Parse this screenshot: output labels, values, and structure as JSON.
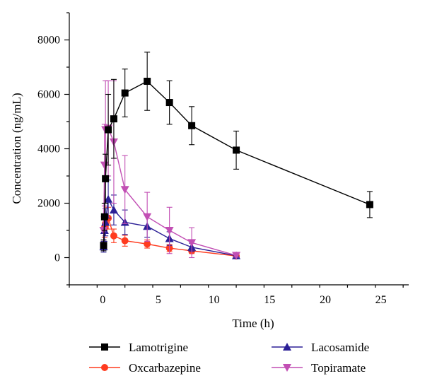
{
  "chart_data": {
    "type": "line",
    "xlabel": "Time (h)",
    "ylabel": "Concentration (ng/mL)",
    "xlim": [
      -3,
      27.5
    ],
    "ylim": [
      -1000,
      9000
    ],
    "xticks": [
      0,
      5,
      10,
      15,
      20,
      25
    ],
    "xtick_labels": [
      "0",
      "5",
      "10",
      "15",
      "20",
      "25"
    ],
    "yticks": [
      0,
      2000,
      4000,
      6000,
      8000
    ],
    "ytick_labels": [
      "0",
      "2000",
      "4000",
      "6000",
      "8000"
    ],
    "grid": false,
    "legend_position": "bottom",
    "series": [
      {
        "name": "Lamotrigine",
        "color": "#000000",
        "marker": "square",
        "points": [
          {
            "x": 0.083,
            "y": 450,
            "err": 200
          },
          {
            "x": 0.167,
            "y": 1500,
            "err": 500
          },
          {
            "x": 0.25,
            "y": 2900,
            "err": 900
          },
          {
            "x": 0.5,
            "y": 4700,
            "err": 1300
          },
          {
            "x": 1,
            "y": 5100,
            "err": 1450
          },
          {
            "x": 2,
            "y": 6050,
            "err": 880
          },
          {
            "x": 4,
            "y": 6480,
            "err": 1070
          },
          {
            "x": 6,
            "y": 5700,
            "err": 800
          },
          {
            "x": 8,
            "y": 4850,
            "err": 700
          },
          {
            "x": 12,
            "y": 3950,
            "err": 700
          },
          {
            "x": 24,
            "y": 1950,
            "err": 480
          }
        ]
      },
      {
        "name": "Oxcarbazepine",
        "color": "#ff3b1f",
        "marker": "circle",
        "points": [
          {
            "x": 0.083,
            "y": 450,
            "err": 150
          },
          {
            "x": 0.167,
            "y": 1100,
            "err": 350
          },
          {
            "x": 0.25,
            "y": 1250,
            "err": 350
          },
          {
            "x": 0.5,
            "y": 1450,
            "err": 400
          },
          {
            "x": 1,
            "y": 800,
            "err": 250
          },
          {
            "x": 2,
            "y": 620,
            "err": 200
          },
          {
            "x": 4,
            "y": 500,
            "err": 150
          },
          {
            "x": 6,
            "y": 350,
            "err": 130
          },
          {
            "x": 8,
            "y": 250,
            "err": 100
          },
          {
            "x": 12,
            "y": 60,
            "err": 40
          }
        ]
      },
      {
        "name": "Lacosamide",
        "color": "#2b1f96",
        "marker": "triangle-up",
        "points": [
          {
            "x": 0.083,
            "y": 400,
            "err": 200
          },
          {
            "x": 0.167,
            "y": 1000,
            "err": 400
          },
          {
            "x": 0.25,
            "y": 1300,
            "err": 500
          },
          {
            "x": 0.5,
            "y": 2150,
            "err": 700
          },
          {
            "x": 1,
            "y": 1750,
            "err": 550
          },
          {
            "x": 2,
            "y": 1300,
            "err": 450
          },
          {
            "x": 4,
            "y": 1150,
            "err": 400
          },
          {
            "x": 6,
            "y": 700,
            "err": 250
          },
          {
            "x": 8,
            "y": 380,
            "err": 150
          },
          {
            "x": 12,
            "y": 70,
            "err": 50
          }
        ]
      },
      {
        "name": "Topiramate",
        "color": "#c24fb4",
        "marker": "triangle-down",
        "points": [
          {
            "x": 0.083,
            "y": 1000,
            "err": 500
          },
          {
            "x": 0.167,
            "y": 3400,
            "err": 1500
          },
          {
            "x": 0.25,
            "y": 4700,
            "err": 1800
          },
          {
            "x": 0.5,
            "y": 4750,
            "err": 1750
          },
          {
            "x": 1,
            "y": 4250,
            "err": 2250
          },
          {
            "x": 2,
            "y": 2500,
            "err": 1250
          },
          {
            "x": 4,
            "y": 1500,
            "err": 900
          },
          {
            "x": 6,
            "y": 1000,
            "err": 850
          },
          {
            "x": 8,
            "y": 550,
            "err": 550
          },
          {
            "x": 12,
            "y": 80,
            "err": 60
          }
        ]
      }
    ]
  }
}
